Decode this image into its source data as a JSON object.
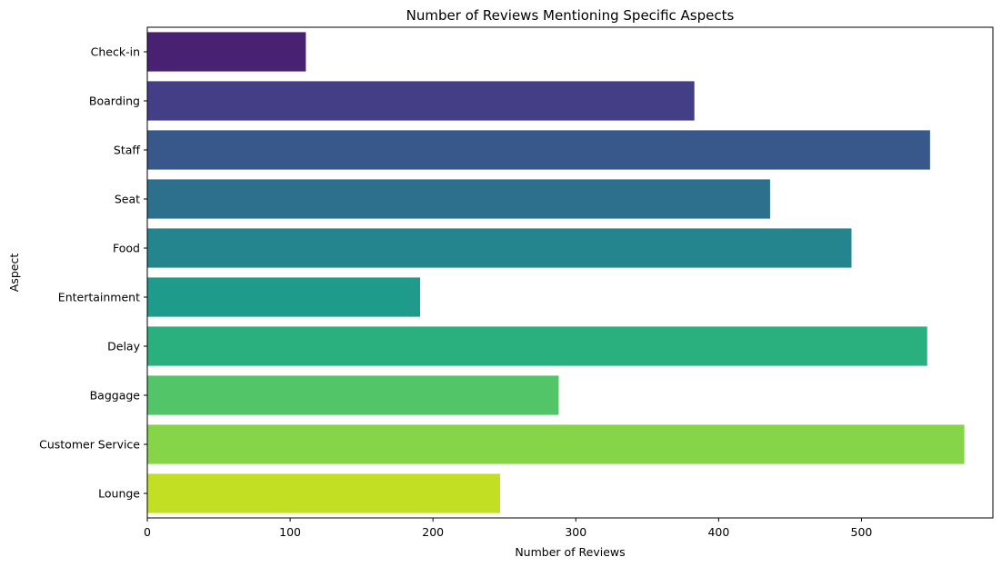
{
  "chart_data": {
    "type": "bar",
    "orientation": "horizontal",
    "title": "Number of Reviews Mentioning Specific Aspects",
    "xlabel": "Number of Reviews",
    "ylabel": "Aspect",
    "categories": [
      "Check-in",
      "Boarding",
      "Staff",
      "Seat",
      "Food",
      "Entertainment",
      "Delay",
      "Baggage",
      "Customer Service",
      "Lounge"
    ],
    "values": [
      111,
      383,
      548,
      436,
      493,
      191,
      546,
      288,
      572,
      247
    ],
    "colors": [
      "#482173",
      "#433e85",
      "#38588c",
      "#2d708e",
      "#25858e",
      "#1e9b8a",
      "#2ab07f",
      "#52c569",
      "#86d549",
      "#c2df23"
    ],
    "xlim": [
      0,
      592
    ],
    "xticks": [
      0,
      100,
      200,
      300,
      400,
      500
    ],
    "grid": false,
    "legend": "none"
  }
}
